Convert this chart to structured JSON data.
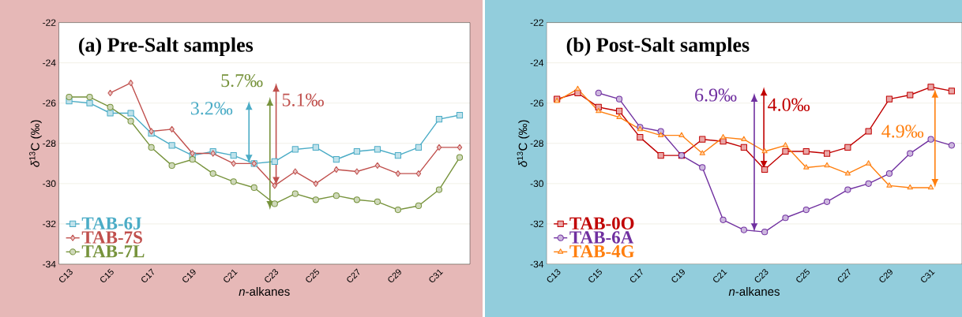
{
  "chart_data": [
    {
      "type": "line",
      "title": "(a) Pre-Salt samples",
      "xlabel": "*n*-alkanes",
      "ylabel": "*δ*$^{13}$C (‰)",
      "categories": [
        "C13",
        null,
        "C15",
        null,
        "C17",
        null,
        "C19",
        null,
        "C21",
        null,
        "C23",
        null,
        "C25",
        null,
        "C27",
        null,
        "C29",
        null,
        "C31",
        null
      ],
      "ylim": [
        -34,
        -22
      ],
      "yticks": [
        -34,
        -32,
        -30,
        -28,
        -26,
        -24,
        -22
      ],
      "grid": "y",
      "legend": "bottom left",
      "series": [
        {
          "name": "TAB-6J",
          "color": "#4bacc6",
          "marker": "square",
          "values": [
            -25.9,
            -26.0,
            -26.5,
            -26.5,
            -27.5,
            -28.1,
            -28.6,
            -28.4,
            -28.6,
            -29.0,
            -28.9,
            -28.3,
            -28.2,
            -28.8,
            -28.4,
            -28.3,
            -28.6,
            -28.2,
            -26.8,
            -26.6
          ]
        },
        {
          "name": "TAB-7S",
          "color": "#c0504d",
          "marker": "diamond",
          "values": [
            null,
            null,
            -25.5,
            -25.0,
            -27.4,
            -27.3,
            -28.5,
            -28.5,
            -29.0,
            -29.0,
            -30.1,
            -29.4,
            -30.0,
            -29.3,
            -29.4,
            -29.1,
            -29.5,
            -29.5,
            -28.2,
            -28.2
          ]
        },
        {
          "name": "TAB-7L",
          "color": "#77933c",
          "marker": "circle",
          "values": [
            -25.7,
            -25.7,
            -26.2,
            -26.9,
            -28.2,
            -29.1,
            -28.8,
            -29.5,
            -29.9,
            -30.2,
            -31.0,
            -30.5,
            -30.8,
            -30.6,
            -30.8,
            -30.9,
            -31.3,
            -31.1,
            -30.3,
            -28.7
          ]
        }
      ],
      "annotations": [
        "3.2‰",
        "5.1‰",
        "5.7‰"
      ]
    },
    {
      "type": "line",
      "title": "(b) Post-Salt samples",
      "xlabel": "*n*-alkanes",
      "ylabel": "*δ*$^{13}$C (‰)",
      "categories": [
        "C13",
        null,
        "C15",
        null,
        "C17",
        null,
        "C19",
        null,
        "C21",
        null,
        "C23",
        null,
        "C25",
        null,
        "C27",
        null,
        "C29",
        null,
        "C31",
        null
      ],
      "ylim": [
        -34,
        -22
      ],
      "yticks": [
        -34,
        -32,
        -30,
        -28,
        -26,
        -24,
        -22
      ],
      "grid": "y",
      "legend": "bottom left",
      "series": [
        {
          "name": "TAB-0O",
          "color": "#c00000",
          "marker": "square",
          "values": [
            -25.8,
            -25.5,
            -26.2,
            -26.4,
            -27.7,
            -28.6,
            -28.6,
            -27.8,
            -27.9,
            -28.2,
            -29.3,
            -28.4,
            -28.4,
            -28.5,
            -28.2,
            -27.4,
            -25.8,
            -25.6,
            -25.2,
            -25.4
          ]
        },
        {
          "name": "TAB-6A",
          "color": "#7030a0",
          "marker": "circle",
          "values": [
            null,
            null,
            -25.5,
            -25.8,
            -27.2,
            -27.4,
            -28.6,
            -29.2,
            -31.8,
            -32.3,
            -32.4,
            -31.7,
            -31.3,
            -30.9,
            -30.3,
            -30.0,
            -29.5,
            -28.5,
            -27.8,
            -28.1
          ]
        },
        {
          "name": "TAB-4G",
          "color": "#ff7f0e",
          "marker": "triangle",
          "values": [
            -25.9,
            -25.3,
            -26.4,
            -26.7,
            -27.3,
            -27.6,
            -27.6,
            -28.5,
            -27.7,
            -27.8,
            -28.4,
            -28.1,
            -29.2,
            -29.1,
            -29.5,
            -29.0,
            -30.1,
            -30.2,
            -30.2,
            null
          ]
        }
      ],
      "annotations": [
        "4.0‰",
        "6.9‰",
        "4.9‰"
      ]
    }
  ]
}
